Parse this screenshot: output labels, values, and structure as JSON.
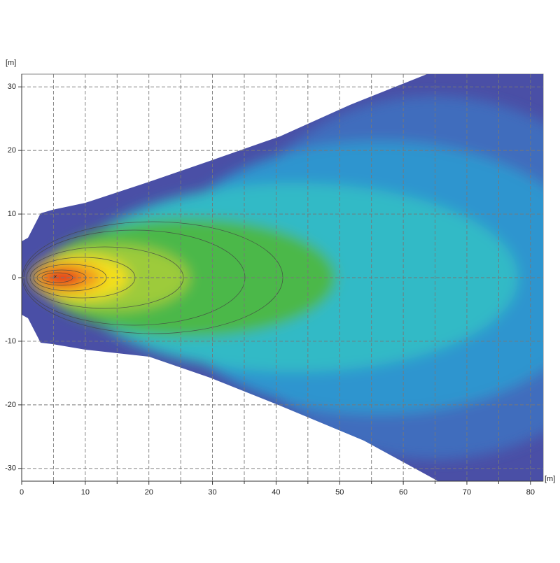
{
  "chart_data": {
    "type": "heatmap",
    "x_label": "[m]",
    "y_label": "[m]",
    "xlim": [
      0,
      82
    ],
    "ylim": [
      -32,
      32
    ],
    "xticks": [
      0,
      10,
      20,
      30,
      40,
      50,
      60,
      70,
      80
    ],
    "xminor": [
      5,
      15,
      25,
      35,
      45,
      55,
      65,
      75
    ],
    "yticks": [
      -30,
      -20,
      -10,
      0,
      10,
      20,
      30
    ],
    "grid": true
  }
}
